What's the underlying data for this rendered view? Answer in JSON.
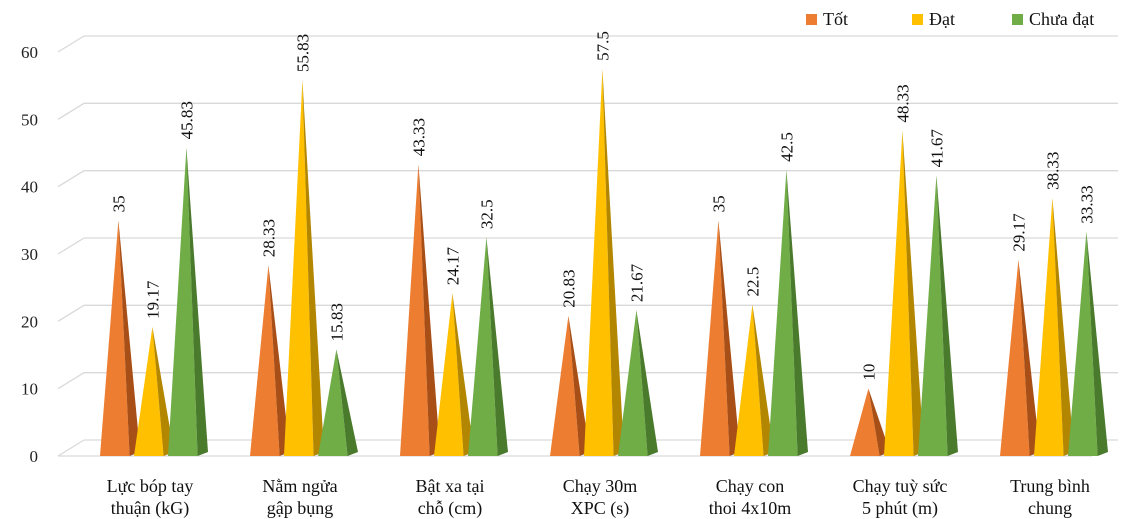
{
  "chart_data": {
    "type": "bar",
    "bar_shape": "cone",
    "categories": [
      [
        "Lực bóp tay",
        "thuận (kG)"
      ],
      [
        "Nằm ngửa",
        "gập bụng"
      ],
      [
        "Bật xa tại",
        "chỗ (cm)"
      ],
      [
        "Chạy 30m",
        "XPC (s)"
      ],
      [
        "Chạy con",
        "thoi 4x10m"
      ],
      [
        "Chạy tuỳ sức",
        "5 phút (m)"
      ],
      [
        "Trung bình",
        "chung"
      ]
    ],
    "series": [
      {
        "name": "Tốt",
        "color": "#ED7D31",
        "shade": "#A84F17",
        "values": [
          35,
          28.33,
          43.33,
          20.83,
          35,
          10,
          29.17
        ]
      },
      {
        "name": "Đạt",
        "color": "#FFC000",
        "shade": "#B38600",
        "values": [
          19.17,
          55.83,
          24.17,
          57.5,
          22.5,
          48.33,
          38.33
        ]
      },
      {
        "name": "Chưa đạt",
        "color": "#70AD47",
        "shade": "#4A7A2C",
        "values": [
          45.83,
          15.83,
          32.5,
          21.67,
          42.5,
          41.67,
          33.33
        ]
      }
    ],
    "ylim": [
      0,
      60
    ],
    "yticks": [
      0,
      10,
      20,
      30,
      40,
      50,
      60
    ],
    "grid": true,
    "legend_position": "top-right",
    "data_labels": true,
    "data_label_rotation": "vertical"
  }
}
